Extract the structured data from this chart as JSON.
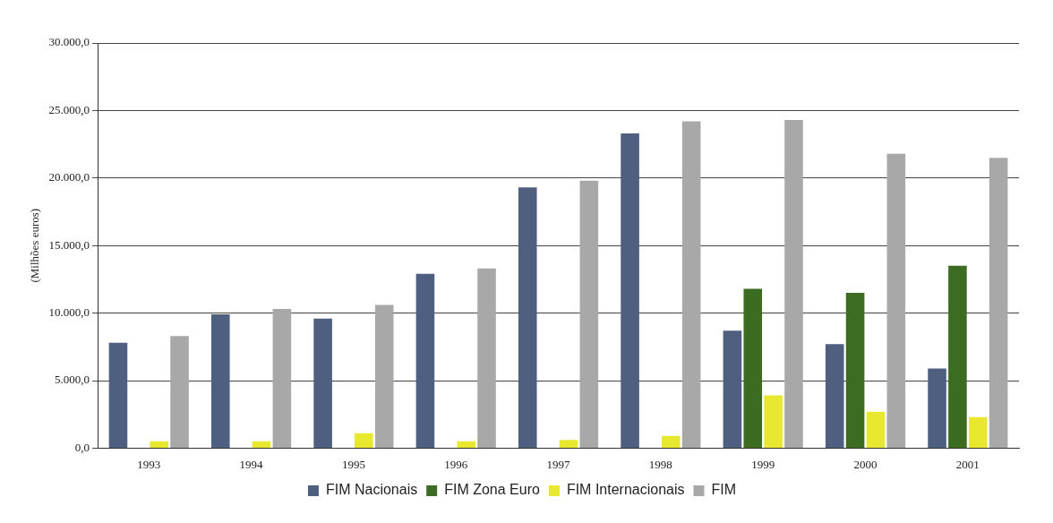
{
  "chart_data": {
    "type": "bar",
    "ylabel": "(Milhões euros)",
    "categories": [
      "1993",
      "1994",
      "1995",
      "1996",
      "1997",
      "1998",
      "1999",
      "2000",
      "2001"
    ],
    "series": [
      {
        "name": "FIM Nacionais",
        "color": "#4f5f80",
        "values": [
          7800,
          9900,
          9600,
          12900,
          19300,
          23300,
          8700,
          7700,
          5900
        ]
      },
      {
        "name": "FIM Zona Euro",
        "color": "#3c6b22",
        "values": [
          null,
          null,
          null,
          null,
          null,
          null,
          11800,
          11500,
          13500
        ]
      },
      {
        "name": "FIM Internacionais",
        "color": "#e8e830",
        "values": [
          500,
          500,
          1100,
          500,
          600,
          900,
          3900,
          2700,
          2300
        ]
      },
      {
        "name": "FIM",
        "color": "#a8a8a8",
        "values": [
          8300,
          10300,
          10600,
          13300,
          19800,
          24200,
          24300,
          21800,
          21500
        ]
      }
    ],
    "ylim": [
      0,
      30000
    ],
    "yticks": [
      {
        "value": 0,
        "label": "0,0"
      },
      {
        "value": 5000,
        "label": "5.000,0"
      },
      {
        "value": 10000,
        "label": "10.000,0"
      },
      {
        "value": 15000,
        "label": "15.000,0"
      },
      {
        "value": 20000,
        "label": "20.000,0"
      },
      {
        "value": 25000,
        "label": "25.000,0"
      },
      {
        "value": 30000,
        "label": "30.000,0"
      }
    ],
    "grid": "y",
    "legend": "bottom"
  }
}
